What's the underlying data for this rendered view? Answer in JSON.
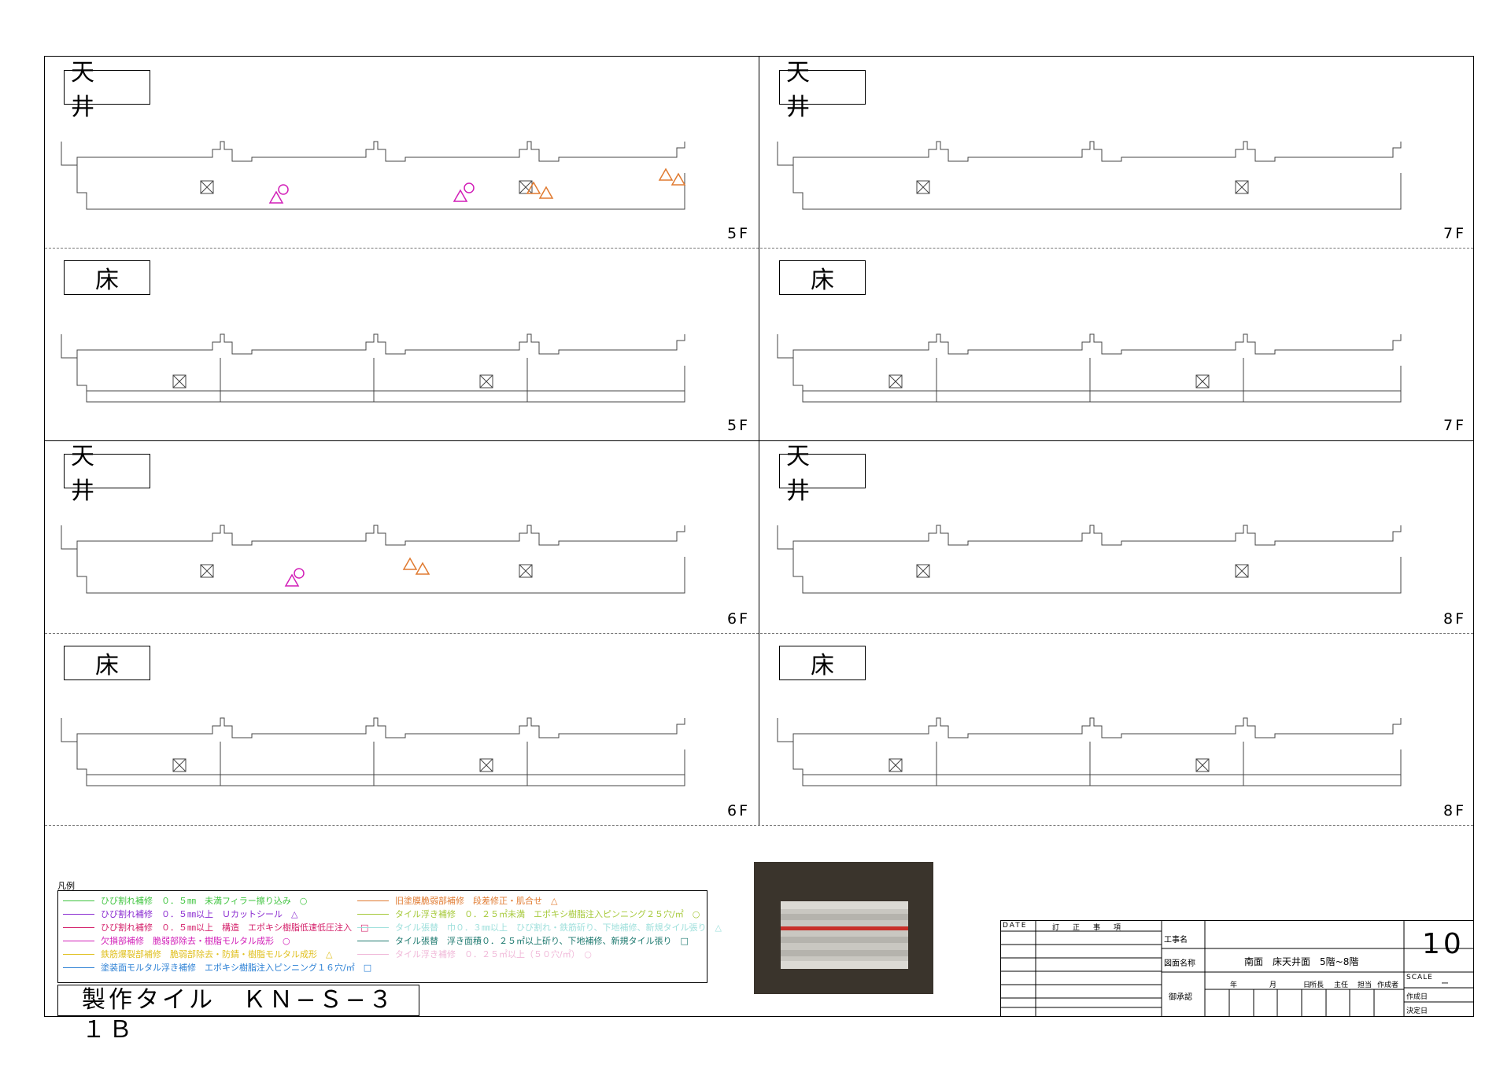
{
  "panels": [
    {
      "id": "p1",
      "tag": "天 井",
      "floor": "5F"
    },
    {
      "id": "p2",
      "tag": "天 井",
      "floor": "7F"
    },
    {
      "id": "p3",
      "tag": "床",
      "floor": "5F"
    },
    {
      "id": "p4",
      "tag": "床",
      "floor": "7F"
    },
    {
      "id": "p5",
      "tag": "天 井",
      "floor": "6F"
    },
    {
      "id": "p6",
      "tag": "天 井",
      "floor": "8F"
    },
    {
      "id": "p7",
      "tag": "床",
      "floor": "6F"
    },
    {
      "id": "p8",
      "tag": "床",
      "floor": "8F"
    }
  ],
  "legend": {
    "caption": "凡例",
    "items": [
      {
        "text": "ひび割れ補修　０．５㎜　未満フィラー擦り込み　○",
        "color": "#3ec43e"
      },
      {
        "text": "ひび割れ補修　０．５㎜以上　Ｕカットシール　△",
        "color": "#8a2bd0"
      },
      {
        "text": "ひび割れ補修　０．５㎜以上　構造　エポキシ樹脂低速低圧注入　□",
        "color": "#d4206a"
      },
      {
        "text": "欠損部補修　脆弱部除去・樹脂モルタル成形　○",
        "color": "#d21fb8"
      },
      {
        "text": "鉄筋爆裂部補修　脆弱部除去・防錆・樹脂モルタル成形　△",
        "color": "#e0c020"
      },
      {
        "text": "塗装面モルタル浮き補修　エポキシ樹脂注入ピンニング１６穴/㎡　□",
        "color": "#2a7fd4"
      },
      {
        "text": "旧塗膜脆弱部補修　段差修正・肌合せ　△",
        "color": "#e07a30"
      },
      {
        "text": "タイル浮き補修　０．２５㎡未満　エポキシ樹脂注入ピンニング２５穴/㎡　○",
        "color": "#a6c93a"
      },
      {
        "text": "タイル張替　巾０．３㎜以上　ひび割れ・鉄筋斫り、下地補修、新規タイル張り　△",
        "color": "#9fe0dc"
      },
      {
        "text": "タイル張替　浮き面積０．２５㎡以上斫り、下地補修、新規タイル張り　□",
        "color": "#1f7a70"
      },
      {
        "text": "タイル浮き補修　０．２５㎡以上（５０穴/㎡）　○",
        "color": "#f0b8d8"
      }
    ]
  },
  "tile_title": "製作タイル　ＫＮ−Ｓ−３１Ｂ",
  "title_block": {
    "date_label": "DATE",
    "revision_label": "訂　正　事　項",
    "project_label": "工事名",
    "drawing_name_label": "図面名称",
    "drawing_name": "南面　床天井面　5階~8階",
    "approval_label": "御承認",
    "year": "年",
    "month": "月",
    "day": "日",
    "roles": [
      "所長",
      "主任",
      "担当",
      "作成者"
    ],
    "sheet_no": "10",
    "scale_label": "SCALE",
    "scale_value": "ー",
    "created_label": "作成日",
    "decided_label": "決定日"
  }
}
